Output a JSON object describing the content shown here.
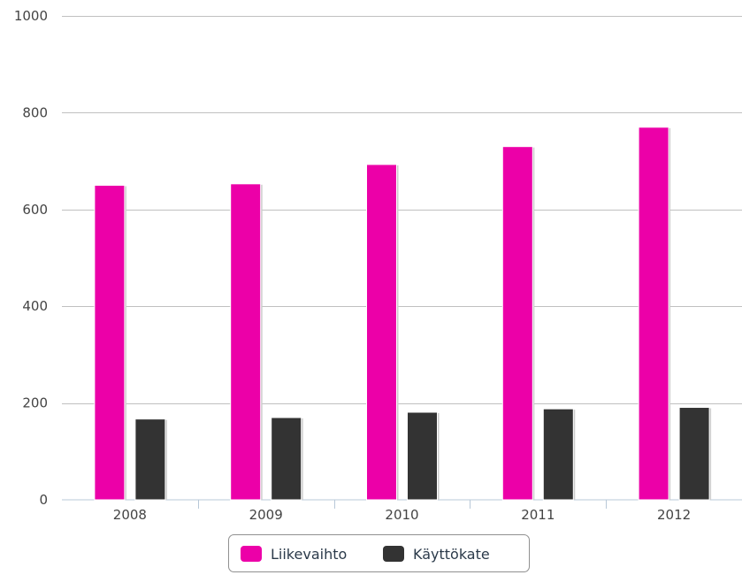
{
  "chart_data": {
    "type": "bar",
    "categories": [
      "2008",
      "2009",
      "2010",
      "2011",
      "2012"
    ],
    "series": [
      {
        "name": "Liikevaihto",
        "color": "#ec00a8",
        "values": [
          650,
          653,
          693,
          730,
          770
        ]
      },
      {
        "name": "Käyttökate",
        "color": "#333333",
        "values": [
          167,
          170,
          181,
          188,
          191
        ]
      }
    ],
    "yticks": [
      0,
      200,
      400,
      600,
      800,
      1000
    ],
    "ylim": [
      0,
      1000
    ],
    "grid": true,
    "legend_position": "bottom-center"
  }
}
